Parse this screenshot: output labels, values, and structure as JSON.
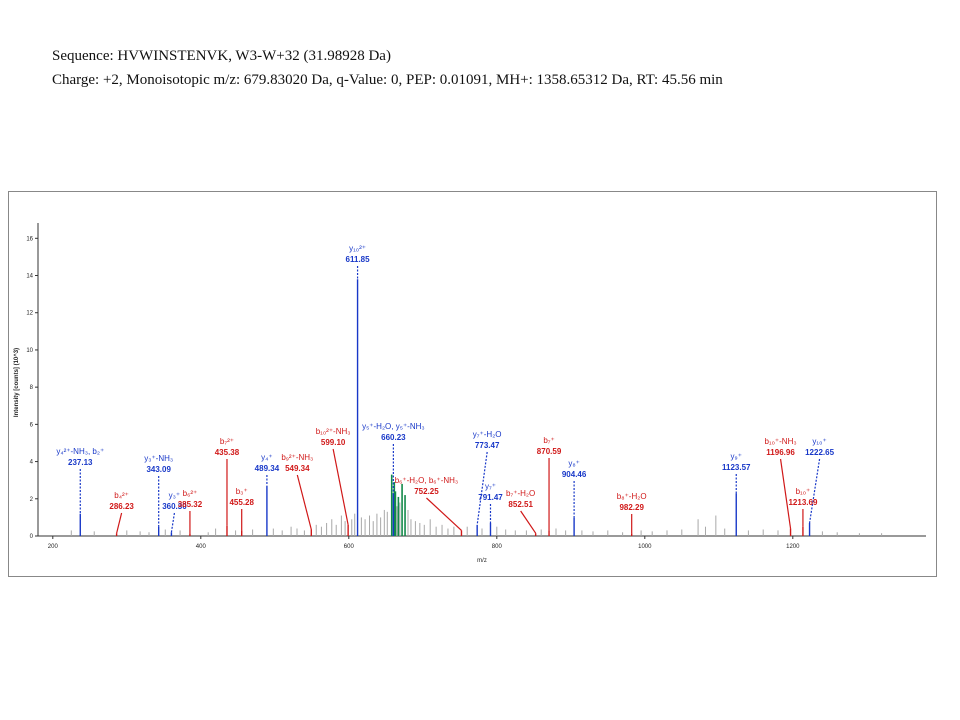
{
  "header": {
    "line1": "Sequence: HVWINSTENVK, W3-W+32 (31.98928 Da)",
    "line2": "Charge: +2, Monoisotopic m/z: 679.83020 Da, q-Value: 0, PEP: 0.01091, MH+: 1358.65312 Da, RT: 45.56 min"
  },
  "chart_data": {
    "type": "bar",
    "title": "",
    "xlabel": "m/z",
    "ylabel": "Intensity [counts] (10^3)",
    "xlim": [
      180,
      1380
    ],
    "ylim": [
      0,
      16.5
    ],
    "x_ticks": [
      200,
      400,
      600,
      800,
      1000,
      1200
    ],
    "y_ticks": [
      0,
      2,
      4,
      6,
      8,
      10,
      12,
      14,
      16
    ],
    "colors": {
      "b_ion": "#d01818",
      "y_ion": "#1838c8",
      "unassigned": "#a8a8a8",
      "precursor": "#138a4a"
    },
    "annotated_peaks": [
      {
        "lines": [
          "y₄²⁺-NH₃, b₂⁺",
          "237.13"
        ],
        "mz": 237.13,
        "intensity": 1.2,
        "ion": "y"
      },
      {
        "lines": [
          "b₄²⁺",
          "286.23"
        ],
        "mz": 286.23,
        "intensity": 0.15,
        "ion": "b"
      },
      {
        "lines": [
          "y₃⁺-NH₃",
          "343.09"
        ],
        "mz": 343.09,
        "intensity": 0.5,
        "ion": "y"
      },
      {
        "lines": [
          "y₃⁺",
          "360.30"
        ],
        "mz": 360.3,
        "intensity": 0.2,
        "ion": "y"
      },
      {
        "lines": [
          "b₆²⁺",
          "385.32"
        ],
        "mz": 385.32,
        "intensity": 0.15,
        "ion": "b"
      },
      {
        "lines": [
          "b₇²⁺",
          "435.38"
        ],
        "mz": 435.38,
        "intensity": 0.55,
        "ion": "b"
      },
      {
        "lines": [
          "b₃⁺",
          "455.28"
        ],
        "mz": 455.28,
        "intensity": 0.3,
        "ion": "b"
      },
      {
        "lines": [
          "y₄⁺",
          "489.34"
        ],
        "mz": 489.34,
        "intensity": 2.7,
        "ion": "y"
      },
      {
        "lines": [
          "b₉²⁺-NH₃",
          "549.34"
        ],
        "mz": 549.34,
        "intensity": 0.35,
        "ion": "b"
      },
      {
        "lines": [
          "b₁₀²⁺-NH₃",
          "599.10"
        ],
        "mz": 599.1,
        "intensity": 0.6,
        "ion": "b"
      },
      {
        "lines": [
          "y₁₀²⁺",
          "611.85"
        ],
        "mz": 611.85,
        "intensity": 13.8,
        "ion": "y"
      },
      {
        "lines": [
          "y₅⁺-H₂O, y₅⁺-NH₃",
          "660.23"
        ],
        "mz": 660.23,
        "intensity": 2.3,
        "ion": "y"
      },
      {
        "lines": [
          "b₆⁺-H₂O, b₆⁺-NH₃",
          "752.25"
        ],
        "mz": 752.25,
        "intensity": 0.3,
        "ion": "b"
      },
      {
        "lines": [
          "y₇⁺-H₂O",
          "773.47"
        ],
        "mz": 773.47,
        "intensity": 0.6,
        "ion": "y"
      },
      {
        "lines": [
          "y₇⁺",
          "791.47"
        ],
        "mz": 791.47,
        "intensity": 0.7,
        "ion": "y"
      },
      {
        "lines": [
          "b₇⁺-H₂O",
          "852.51"
        ],
        "mz": 852.51,
        "intensity": 0.15,
        "ion": "b"
      },
      {
        "lines": [
          "b₇⁺",
          "870.59"
        ],
        "mz": 870.59,
        "intensity": 0.3,
        "ion": "b"
      },
      {
        "lines": [
          "y₈⁺",
          "904.46"
        ],
        "mz": 904.46,
        "intensity": 1.0,
        "ion": "y"
      },
      {
        "lines": [
          "b₈⁺-H₂O",
          "982.29"
        ],
        "mz": 982.29,
        "intensity": 0.15,
        "ion": "b"
      },
      {
        "lines": [
          "y₉⁺",
          "1123.57"
        ],
        "mz": 1123.57,
        "intensity": 2.3,
        "ion": "y"
      },
      {
        "lines": [
          "b₁₀⁺-NH₃",
          "1196.96"
        ],
        "mz": 1196.96,
        "intensity": 0.4,
        "ion": "b"
      },
      {
        "lines": [
          "b₁₀⁺",
          "1213.69"
        ],
        "mz": 1213.69,
        "intensity": 0.5,
        "ion": "b"
      },
      {
        "lines": [
          "y₁₀⁺",
          "1222.65"
        ],
        "mz": 1222.65,
        "intensity": 0.7,
        "ion": "y"
      }
    ],
    "precursor_peaks": [
      {
        "mz": 658.0,
        "intensity": 3.3
      },
      {
        "mz": 661.5,
        "intensity": 2.9
      },
      {
        "mz": 663.0,
        "intensity": 2.4
      },
      {
        "mz": 667.0,
        "intensity": 2.1
      },
      {
        "mz": 672.0,
        "intensity": 2.8
      },
      {
        "mz": 676.0,
        "intensity": 2.2
      }
    ],
    "unassigned_peaks": [
      {
        "mz": 225,
        "intensity": 0.3
      },
      {
        "mz": 256,
        "intensity": 0.25
      },
      {
        "mz": 300,
        "intensity": 0.3
      },
      {
        "mz": 318,
        "intensity": 0.25
      },
      {
        "mz": 330,
        "intensity": 0.2
      },
      {
        "mz": 352,
        "intensity": 0.35
      },
      {
        "mz": 372,
        "intensity": 0.3
      },
      {
        "mz": 410,
        "intensity": 0.2
      },
      {
        "mz": 420,
        "intensity": 0.4
      },
      {
        "mz": 447,
        "intensity": 0.3
      },
      {
        "mz": 470,
        "intensity": 0.35
      },
      {
        "mz": 498,
        "intensity": 0.4
      },
      {
        "mz": 510,
        "intensity": 0.3
      },
      {
        "mz": 522,
        "intensity": 0.5
      },
      {
        "mz": 530,
        "intensity": 0.4
      },
      {
        "mz": 540,
        "intensity": 0.3
      },
      {
        "mz": 556,
        "intensity": 0.6
      },
      {
        "mz": 563,
        "intensity": 0.5
      },
      {
        "mz": 570,
        "intensity": 0.7
      },
      {
        "mz": 577,
        "intensity": 0.9
      },
      {
        "mz": 583,
        "intensity": 0.6
      },
      {
        "mz": 590,
        "intensity": 1.1
      },
      {
        "mz": 595,
        "intensity": 0.8
      },
      {
        "mz": 604,
        "intensity": 0.9
      },
      {
        "mz": 608,
        "intensity": 1.2
      },
      {
        "mz": 617,
        "intensity": 1.0
      },
      {
        "mz": 622,
        "intensity": 0.9
      },
      {
        "mz": 628,
        "intensity": 1.1
      },
      {
        "mz": 633,
        "intensity": 0.8
      },
      {
        "mz": 638,
        "intensity": 1.2
      },
      {
        "mz": 643,
        "intensity": 1.0
      },
      {
        "mz": 648,
        "intensity": 1.4
      },
      {
        "mz": 652,
        "intensity": 1.3
      },
      {
        "mz": 665,
        "intensity": 1.6
      },
      {
        "mz": 669,
        "intensity": 1.8
      },
      {
        "mz": 680,
        "intensity": 1.4
      },
      {
        "mz": 684,
        "intensity": 0.9
      },
      {
        "mz": 690,
        "intensity": 0.8
      },
      {
        "mz": 696,
        "intensity": 0.7
      },
      {
        "mz": 702,
        "intensity": 0.6
      },
      {
        "mz": 710,
        "intensity": 0.9
      },
      {
        "mz": 718,
        "intensity": 0.5
      },
      {
        "mz": 726,
        "intensity": 0.6
      },
      {
        "mz": 734,
        "intensity": 0.4
      },
      {
        "mz": 742,
        "intensity": 0.5
      },
      {
        "mz": 760,
        "intensity": 0.5
      },
      {
        "mz": 780,
        "intensity": 0.4
      },
      {
        "mz": 800,
        "intensity": 0.5
      },
      {
        "mz": 812,
        "intensity": 0.35
      },
      {
        "mz": 825,
        "intensity": 0.3
      },
      {
        "mz": 840,
        "intensity": 0.3
      },
      {
        "mz": 860,
        "intensity": 0.35
      },
      {
        "mz": 880,
        "intensity": 0.4
      },
      {
        "mz": 893,
        "intensity": 0.3
      },
      {
        "mz": 915,
        "intensity": 0.3
      },
      {
        "mz": 930,
        "intensity": 0.25
      },
      {
        "mz": 950,
        "intensity": 0.3
      },
      {
        "mz": 970,
        "intensity": 0.2
      },
      {
        "mz": 995,
        "intensity": 0.3
      },
      {
        "mz": 1010,
        "intensity": 0.25
      },
      {
        "mz": 1030,
        "intensity": 0.3
      },
      {
        "mz": 1050,
        "intensity": 0.35
      },
      {
        "mz": 1072,
        "intensity": 0.9
      },
      {
        "mz": 1082,
        "intensity": 0.5
      },
      {
        "mz": 1096,
        "intensity": 1.1
      },
      {
        "mz": 1108,
        "intensity": 0.4
      },
      {
        "mz": 1140,
        "intensity": 0.3
      },
      {
        "mz": 1160,
        "intensity": 0.35
      },
      {
        "mz": 1180,
        "intensity": 0.3
      },
      {
        "mz": 1240,
        "intensity": 0.25
      },
      {
        "mz": 1260,
        "intensity": 0.2
      },
      {
        "mz": 1290,
        "intensity": 0.15
      },
      {
        "mz": 1320,
        "intensity": 0.15
      }
    ]
  }
}
